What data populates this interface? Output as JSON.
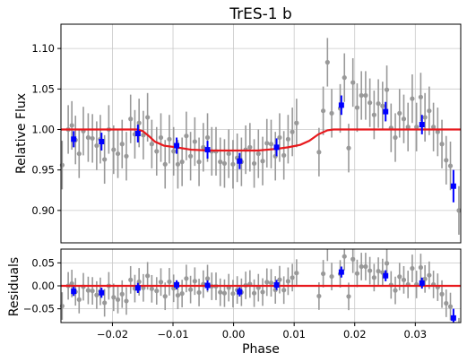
{
  "chart_data": [
    {
      "panel": "main",
      "type": "scatter",
      "title": "TrES-1 b",
      "xlabel": "",
      "ylabel": "Relative Flux",
      "xlim": [
        -0.0285,
        0.0375
      ],
      "ylim": [
        0.86,
        1.13
      ],
      "xticks": [
        -0.02,
        -0.01,
        0.0,
        0.01,
        0.02,
        0.03
      ],
      "yticks": [
        0.9,
        0.95,
        1.0,
        1.05,
        1.1
      ],
      "ytick_labels": [
        "0.90",
        "0.95",
        "1.00",
        "1.05",
        "1.10"
      ],
      "grid": true,
      "colors": {
        "unbinned": "#999999",
        "binned": "#0000ff",
        "model": "#e8191d"
      },
      "unbinned": [
        {
          "x": -0.0283,
          "y": 0.956,
          "e": 0.03
        },
        {
          "x": -0.0273,
          "y": 1.0,
          "e": 0.03
        },
        {
          "x": -0.0267,
          "y": 1.005,
          "e": 0.03
        },
        {
          "x": -0.0261,
          "y": 0.987,
          "e": 0.03
        },
        {
          "x": -0.0255,
          "y": 0.97,
          "e": 0.03
        },
        {
          "x": -0.0248,
          "y": 0.998,
          "e": 0.03
        },
        {
          "x": -0.024,
          "y": 0.99,
          "e": 0.03
        },
        {
          "x": -0.0233,
          "y": 0.989,
          "e": 0.03
        },
        {
          "x": -0.0226,
          "y": 0.98,
          "e": 0.03
        },
        {
          "x": -0.022,
          "y": 0.988,
          "e": 0.03
        },
        {
          "x": -0.0213,
          "y": 0.963,
          "e": 0.03
        },
        {
          "x": -0.0206,
          "y": 1.0,
          "e": 0.03
        },
        {
          "x": -0.0198,
          "y": 0.975,
          "e": 0.03
        },
        {
          "x": -0.0191,
          "y": 0.97,
          "e": 0.03
        },
        {
          "x": -0.0184,
          "y": 0.982,
          "e": 0.03
        },
        {
          "x": -0.0177,
          "y": 0.967,
          "e": 0.03
        },
        {
          "x": -0.017,
          "y": 1.013,
          "e": 0.03
        },
        {
          "x": -0.0163,
          "y": 0.994,
          "e": 0.03
        },
        {
          "x": -0.0156,
          "y": 1.008,
          "e": 0.03
        },
        {
          "x": -0.0149,
          "y": 0.993,
          "e": 0.03
        },
        {
          "x": -0.0142,
          "y": 1.015,
          "e": 0.03
        },
        {
          "x": -0.0135,
          "y": 0.982,
          "e": 0.03
        },
        {
          "x": -0.0127,
          "y": 0.973,
          "e": 0.03
        },
        {
          "x": -0.012,
          "y": 0.99,
          "e": 0.03
        },
        {
          "x": -0.0113,
          "y": 0.957,
          "e": 0.03
        },
        {
          "x": -0.0106,
          "y": 0.988,
          "e": 0.03
        },
        {
          "x": -0.0099,
          "y": 0.973,
          "e": 0.03
        },
        {
          "x": -0.0092,
          "y": 0.957,
          "e": 0.03
        },
        {
          "x": -0.0085,
          "y": 0.96,
          "e": 0.03
        },
        {
          "x": -0.0078,
          "y": 0.992,
          "e": 0.03
        },
        {
          "x": -0.0071,
          "y": 0.967,
          "e": 0.03
        },
        {
          "x": -0.0064,
          "y": 0.985,
          "e": 0.03
        },
        {
          "x": -0.0057,
          "y": 0.96,
          "e": 0.03
        },
        {
          "x": -0.005,
          "y": 0.978,
          "e": 0.03
        },
        {
          "x": -0.0043,
          "y": 0.99,
          "e": 0.03
        },
        {
          "x": -0.0036,
          "y": 0.973,
          "e": 0.03
        },
        {
          "x": -0.0029,
          "y": 0.973,
          "e": 0.03
        },
        {
          "x": -0.0022,
          "y": 0.96,
          "e": 0.03
        },
        {
          "x": -0.0015,
          "y": 0.958,
          "e": 0.03
        },
        {
          "x": -0.0008,
          "y": 0.97,
          "e": 0.03
        },
        {
          "x": -0.0001,
          "y": 0.957,
          "e": 0.03
        },
        {
          "x": 0.0006,
          "y": 0.965,
          "e": 0.03
        },
        {
          "x": 0.0013,
          "y": 0.96,
          "e": 0.03
        },
        {
          "x": 0.002,
          "y": 0.975,
          "e": 0.03
        },
        {
          "x": 0.0027,
          "y": 0.978,
          "e": 0.03
        },
        {
          "x": 0.0034,
          "y": 0.958,
          "e": 0.03
        },
        {
          "x": 0.0041,
          "y": 0.97,
          "e": 0.03
        },
        {
          "x": 0.0048,
          "y": 0.961,
          "e": 0.03
        },
        {
          "x": 0.0055,
          "y": 0.983,
          "e": 0.03
        },
        {
          "x": 0.0062,
          "y": 0.982,
          "e": 0.03
        },
        {
          "x": 0.0069,
          "y": 0.967,
          "e": 0.03
        },
        {
          "x": 0.0076,
          "y": 0.99,
          "e": 0.03
        },
        {
          "x": 0.0083,
          "y": 0.968,
          "e": 0.03
        },
        {
          "x": 0.009,
          "y": 0.988,
          "e": 0.03
        },
        {
          "x": 0.0097,
          "y": 0.997,
          "e": 0.03
        },
        {
          "x": 0.0104,
          "y": 1.008,
          "e": 0.03
        },
        {
          "x": 0.0141,
          "y": 0.972,
          "e": 0.03
        },
        {
          "x": 0.0148,
          "y": 1.023,
          "e": 0.03
        },
        {
          "x": 0.0155,
          "y": 1.083,
          "e": 0.03
        },
        {
          "x": 0.0162,
          "y": 1.02,
          "e": 0.03
        },
        {
          "x": 0.0176,
          "y": 1.026,
          "e": 0.03
        },
        {
          "x": 0.0183,
          "y": 1.064,
          "e": 0.03
        },
        {
          "x": 0.019,
          "y": 0.977,
          "e": 0.03
        },
        {
          "x": 0.0197,
          "y": 1.058,
          "e": 0.03
        },
        {
          "x": 0.0204,
          "y": 1.027,
          "e": 0.03
        },
        {
          "x": 0.0211,
          "y": 1.042,
          "e": 0.03
        },
        {
          "x": 0.0218,
          "y": 1.042,
          "e": 0.03
        },
        {
          "x": 0.0225,
          "y": 1.033,
          "e": 0.03
        },
        {
          "x": 0.0232,
          "y": 1.018,
          "e": 0.03
        },
        {
          "x": 0.0239,
          "y": 1.032,
          "e": 0.03
        },
        {
          "x": 0.0246,
          "y": 1.029,
          "e": 0.03
        },
        {
          "x": 0.0253,
          "y": 1.049,
          "e": 0.03
        },
        {
          "x": 0.026,
          "y": 1.002,
          "e": 0.03
        },
        {
          "x": 0.0267,
          "y": 0.99,
          "e": 0.03
        },
        {
          "x": 0.0274,
          "y": 1.02,
          "e": 0.03
        },
        {
          "x": 0.0281,
          "y": 1.013,
          "e": 0.03
        },
        {
          "x": 0.0288,
          "y": 1.003,
          "e": 0.03
        },
        {
          "x": 0.0295,
          "y": 1.038,
          "e": 0.03
        },
        {
          "x": 0.0302,
          "y": 1.003,
          "e": 0.03
        },
        {
          "x": 0.0309,
          "y": 1.04,
          "e": 0.03
        },
        {
          "x": 0.0316,
          "y": 1.015,
          "e": 0.03
        },
        {
          "x": 0.0323,
          "y": 1.023,
          "e": 0.03
        },
        {
          "x": 0.033,
          "y": 1.003,
          "e": 0.03
        },
        {
          "x": 0.0337,
          "y": 0.997,
          "e": 0.03
        },
        {
          "x": 0.0344,
          "y": 0.982,
          "e": 0.03
        },
        {
          "x": 0.0351,
          "y": 0.962,
          "e": 0.03
        },
        {
          "x": 0.0358,
          "y": 0.955,
          "e": 0.03
        },
        {
          "x": 0.0372,
          "y": 0.9,
          "e": 0.03
        }
      ],
      "binned": [
        {
          "x": -0.0264,
          "y": 0.988,
          "e": 0.01
        },
        {
          "x": -0.0218,
          "y": 0.985,
          "e": 0.011
        },
        {
          "x": -0.0158,
          "y": 0.995,
          "e": 0.011
        },
        {
          "x": -0.0094,
          "y": 0.98,
          "e": 0.01
        },
        {
          "x": -0.0043,
          "y": 0.975,
          "e": 0.011
        },
        {
          "x": 0.001,
          "y": 0.961,
          "e": 0.01
        },
        {
          "x": 0.0071,
          "y": 0.978,
          "e": 0.011
        },
        {
          "x": 0.0178,
          "y": 1.03,
          "e": 0.012
        },
        {
          "x": 0.0251,
          "y": 1.022,
          "e": 0.012
        },
        {
          "x": 0.0311,
          "y": 1.006,
          "e": 0.012
        },
        {
          "x": 0.0363,
          "y": 0.93,
          "e": 0.02
        }
      ],
      "model": [
        {
          "x": -0.0285,
          "y": 1.0
        },
        {
          "x": -0.016,
          "y": 1.0
        },
        {
          "x": -0.015,
          "y": 0.998
        },
        {
          "x": -0.014,
          "y": 0.992
        },
        {
          "x": -0.013,
          "y": 0.985
        },
        {
          "x": -0.0115,
          "y": 0.98
        },
        {
          "x": -0.0095,
          "y": 0.978
        },
        {
          "x": -0.007,
          "y": 0.975
        },
        {
          "x": -0.004,
          "y": 0.974
        },
        {
          "x": 0.0,
          "y": 0.974
        },
        {
          "x": 0.004,
          "y": 0.974
        },
        {
          "x": 0.007,
          "y": 0.976
        },
        {
          "x": 0.009,
          "y": 0.978
        },
        {
          "x": 0.011,
          "y": 0.981
        },
        {
          "x": 0.0125,
          "y": 0.986
        },
        {
          "x": 0.014,
          "y": 0.994
        },
        {
          "x": 0.0155,
          "y": 0.999
        },
        {
          "x": 0.0165,
          "y": 1.0
        },
        {
          "x": 0.0375,
          "y": 1.0
        }
      ]
    },
    {
      "panel": "residuals",
      "type": "scatter",
      "xlabel": "Phase",
      "ylabel": "Residuals",
      "xlim": [
        -0.0285,
        0.0375
      ],
      "ylim": [
        -0.08,
        0.08
      ],
      "xticks": [
        -0.02,
        -0.01,
        0.0,
        0.01,
        0.02,
        0.03
      ],
      "xtick_labels": [
        "−0.02",
        "−0.01",
        "0.00",
        "0.01",
        "0.02",
        "0.03"
      ],
      "yticks": [
        -0.05,
        0.0,
        0.05
      ],
      "ytick_labels": [
        "−0.05",
        "0.00",
        "0.05"
      ],
      "grid": true,
      "zero_line": 0.0
    }
  ]
}
